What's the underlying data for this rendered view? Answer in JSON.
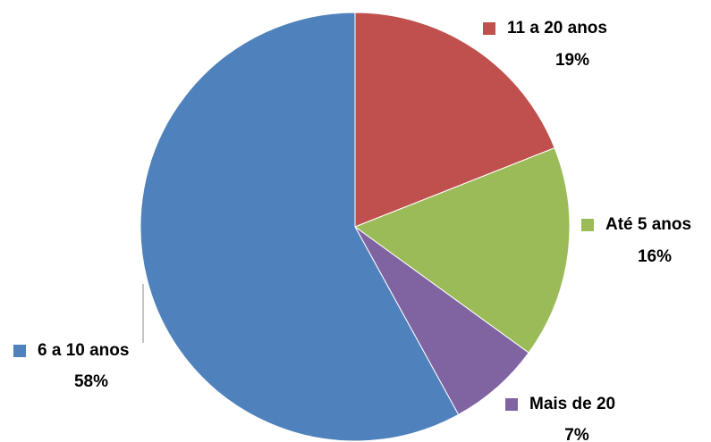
{
  "chart_data": {
    "type": "pie",
    "categories": [
      "11 a 20 anos",
      "Até 5 anos",
      "Mais de 20",
      "6 a 10 anos"
    ],
    "values": [
      19,
      16,
      7,
      58
    ],
    "value_labels": [
      "19%",
      "16%",
      "7%",
      "58%"
    ],
    "colors": [
      "#c0504d",
      "#9bbb59",
      "#8064a2",
      "#4f81bd"
    ]
  }
}
